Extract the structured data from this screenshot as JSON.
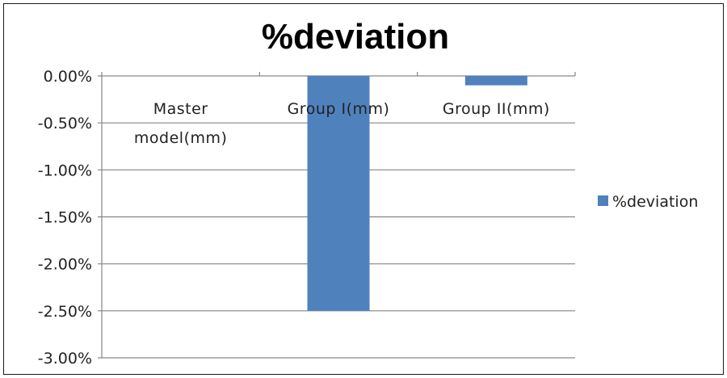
{
  "chart_data": {
    "type": "bar",
    "title": "%deviation",
    "categories": [
      "Master model(mm)",
      "Group I(mm)",
      "Group II(mm)"
    ],
    "category_lines": [
      [
        "Master",
        "model(mm)"
      ],
      [
        "Group I(mm)"
      ],
      [
        "Group II(mm)"
      ]
    ],
    "series": [
      {
        "name": "%deviation",
        "values": [
          0.0,
          -2.5,
          -0.1
        ],
        "color": "#4f81bd"
      }
    ],
    "ylim": [
      -3.0,
      0.0
    ],
    "yticks": [
      0.0,
      -0.5,
      -1.0,
      -1.5,
      -2.0,
      -2.5,
      -3.0
    ],
    "ytick_labels": [
      "0.00%",
      "-0.50%",
      "-1.00%",
      "-1.50%",
      "-2.00%",
      "-2.50%",
      "-3.00%"
    ],
    "xlabel": "",
    "ylabel": "",
    "grid": true,
    "legend_position": "right",
    "colors": {
      "bar": "#4f81bd",
      "grid": "#868686",
      "axis": "#868686"
    }
  }
}
